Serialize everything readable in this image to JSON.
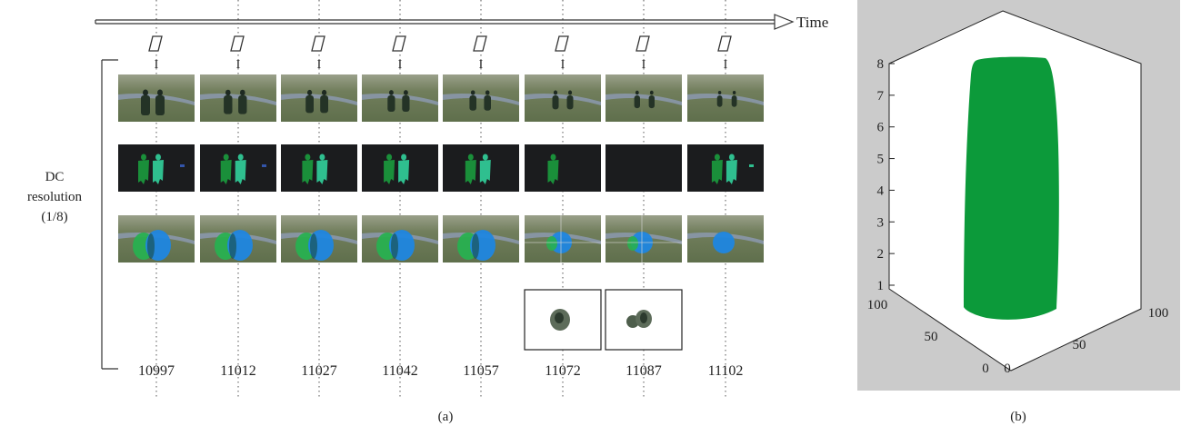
{
  "time_label": "Time",
  "frame_type_marker": "I",
  "side_label": {
    "line1": "DC",
    "line2": "resolution",
    "line3": "(1/8)"
  },
  "frames": [
    {
      "number": "10997",
      "people": 2,
      "mask_people": 2,
      "circles": 2,
      "extra_blob": true,
      "zoom": false
    },
    {
      "number": "11012",
      "people": 2,
      "mask_people": 2,
      "circles": 2,
      "extra_blob": true,
      "zoom": false
    },
    {
      "number": "11027",
      "people": 2,
      "mask_people": 2,
      "circles": 2,
      "extra_blob": false,
      "zoom": false
    },
    {
      "number": "11042",
      "people": 2,
      "mask_people": 2,
      "circles": 2,
      "extra_blob": false,
      "zoom": false
    },
    {
      "number": "11057",
      "people": 2,
      "mask_people": 2,
      "circles": 2,
      "extra_blob": false,
      "zoom": false
    },
    {
      "number": "11072",
      "people": 2,
      "mask_people": 1,
      "circles": 1,
      "extra_blob": false,
      "zoom": true
    },
    {
      "number": "11087",
      "people": 2,
      "mask_people": 0,
      "circles": 1,
      "extra_blob": false,
      "zoom": true
    },
    {
      "number": "11102",
      "people": 2,
      "mask_people": 2,
      "circles": 1,
      "extra_blob": true,
      "zoom": false
    }
  ],
  "plot3d": {
    "z_ticks": [
      "1",
      "2",
      "3",
      "4",
      "5",
      "6",
      "7",
      "8"
    ],
    "left_axis_ticks": [
      "0",
      "50",
      "100"
    ],
    "right_axis_ticks": [
      "0",
      "50",
      "100"
    ],
    "background_color": "#cbcbcb",
    "volume_color": "#0c9a3a"
  },
  "captions": {
    "a": "(a)",
    "b": "(b)"
  },
  "colors": {
    "field": "#6f7d5e",
    "mask_bg": "#1b1c1e",
    "mask_light": "#2fbf8f",
    "mask_dark": "#1a8f3a",
    "circle_green": "#28b050",
    "circle_blue": "#1f86e0"
  }
}
